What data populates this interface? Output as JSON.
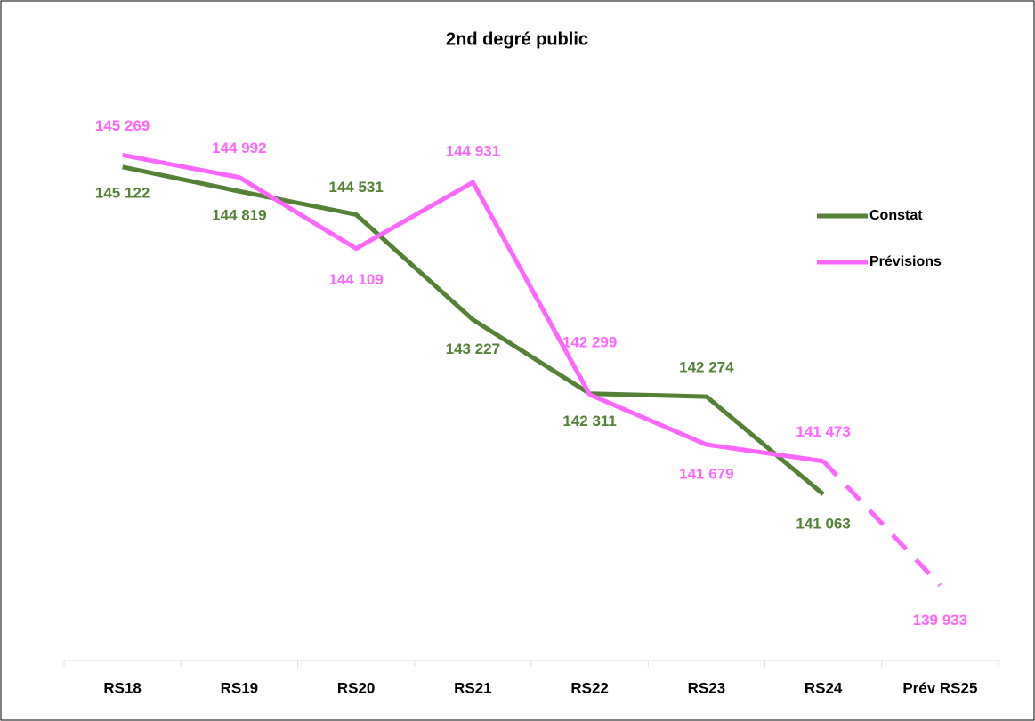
{
  "chart_data": {
    "type": "line",
    "title": "2nd degré public",
    "categories": [
      "RS18",
      "RS19",
      "RS20",
      "RS21",
      "RS22",
      "RS23",
      "RS24",
      "Prév RS25"
    ],
    "series": [
      {
        "name": "Constat",
        "color": "#548235",
        "values": [
          145122,
          144819,
          144531,
          143227,
          142311,
          142274,
          141063,
          null
        ],
        "value_labels": [
          "145 122",
          "144 819",
          "144 531",
          "143 227",
          "142 311",
          "142 274",
          "141 063",
          null
        ]
      },
      {
        "name": "Prévisions",
        "color": "#ff66ff",
        "values": [
          145269,
          144992,
          144109,
          144931,
          142299,
          141679,
          141473,
          139933
        ],
        "value_labels": [
          "145 269",
          "144 992",
          "144 109",
          "144 931",
          "142 299",
          "141 679",
          "141 473",
          "139 933"
        ],
        "dashed_from_index": 6
      }
    ],
    "ylim": [
      139000,
      146200
    ],
    "legend": "right",
    "grid": false
  }
}
